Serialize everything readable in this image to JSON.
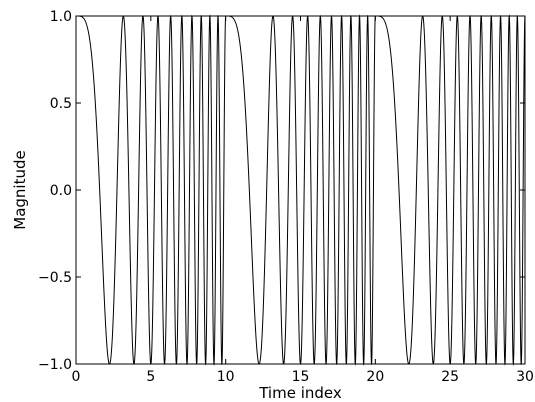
{
  "chart_data": {
    "type": "line",
    "title": "",
    "xlabel": "Time index",
    "ylabel": "Magnitude",
    "xlim": [
      0,
      30
    ],
    "ylim": [
      -1.0,
      1.0
    ],
    "xticks": [
      0,
      5,
      10,
      15,
      20,
      25,
      30
    ],
    "xtick_labels": [
      "0",
      "5",
      "10",
      "15",
      "20",
      "25",
      "30"
    ],
    "yticks": [
      -1.0,
      -0.5,
      0.0,
      0.5,
      1.0
    ],
    "ytick_labels": [
      "−1.0",
      "−0.5",
      "0.0",
      "0.5",
      "1.0"
    ],
    "grid": false,
    "legend": "none",
    "line_color": "#000000",
    "series": [
      {
        "description_formula": "cos(pi * (t mod 10)^2 / 5)",
        "period": 10,
        "x_start": 0,
        "x_end": 30
      }
    ]
  }
}
